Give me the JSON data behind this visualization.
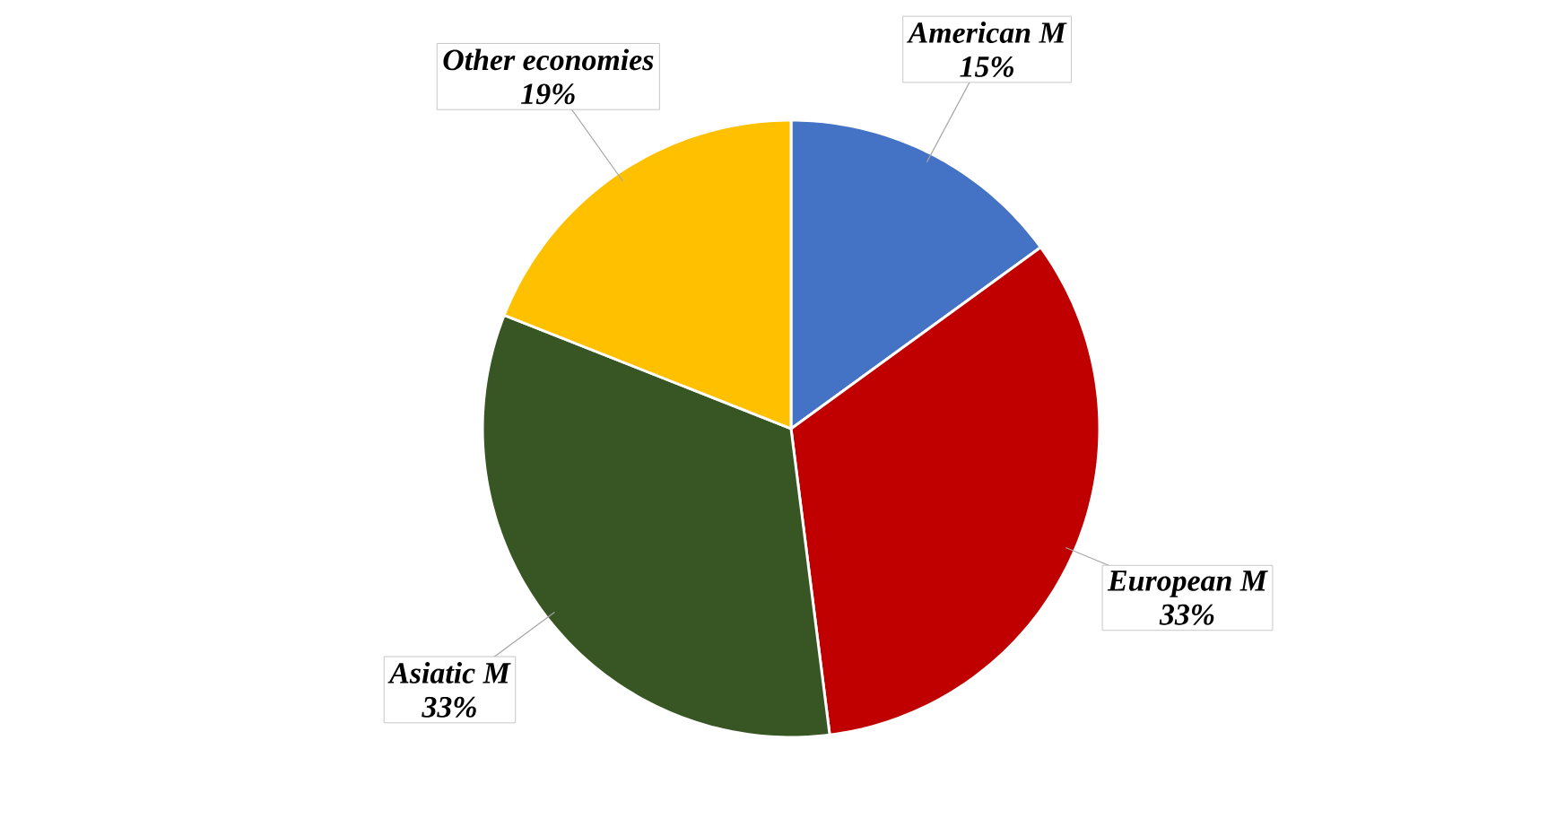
{
  "chart_data": {
    "type": "pie",
    "categories": [
      "American M",
      "European M",
      "Asiatic M",
      "Other economies"
    ],
    "values": [
      15,
      33,
      33,
      19
    ],
    "colors": [
      "#4472c4",
      "#c00000",
      "#375623",
      "#ffc000"
    ],
    "value_labels": [
      "15%",
      "33%",
      "33%",
      "19%"
    ]
  }
}
